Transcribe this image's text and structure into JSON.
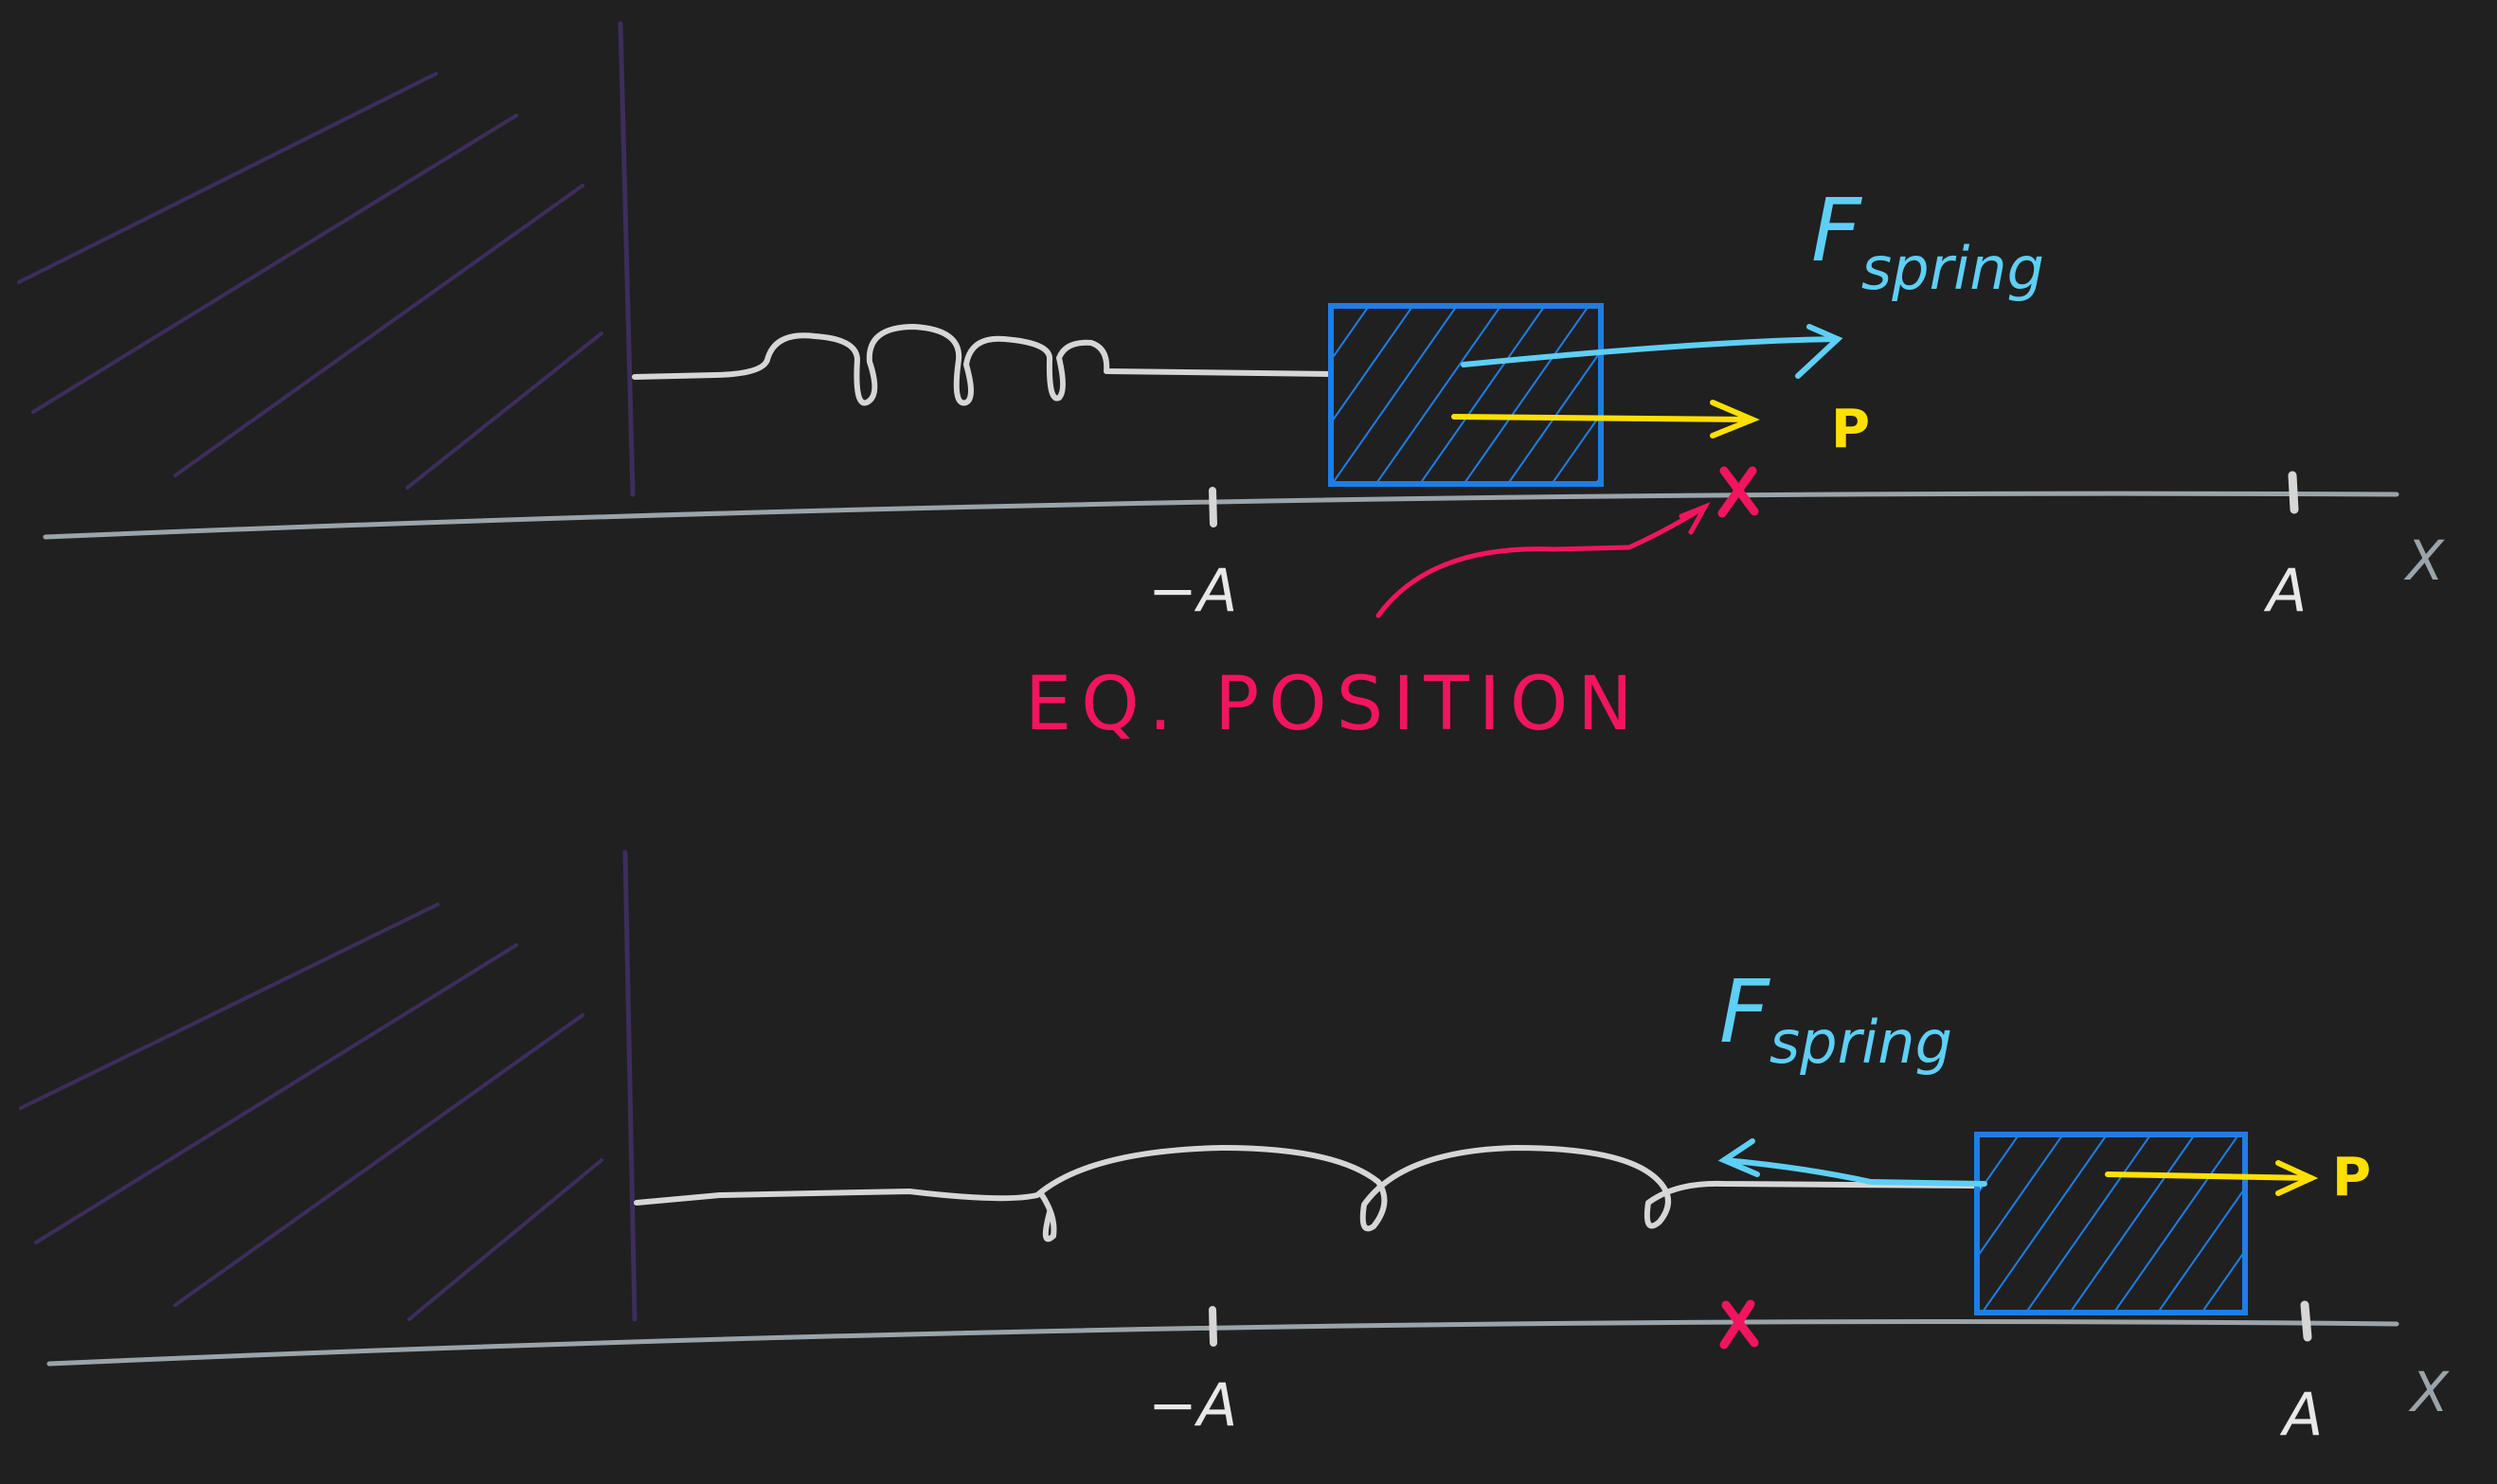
{
  "colors": {
    "background": "#202020",
    "wall": "#3d2d5c",
    "axis": "#9aa4aa",
    "spring": "#d6d6d6",
    "block": "#1e7ee6",
    "spring_force": "#5ecff5",
    "momentum": "#ffe000",
    "equilibrium": "#f2145f"
  },
  "top_panel": {
    "neg_amplitude_label": "−A",
    "amplitude_label": "A",
    "axis_label": "X",
    "force_label_main": "F",
    "force_label_sub": "spring",
    "momentum_label": "P",
    "equilibrium_label": "EQ. POSITION"
  },
  "bottom_panel": {
    "neg_amplitude_label": "−A",
    "amplitude_label": "A",
    "axis_label": "X",
    "force_label_main": "F",
    "force_label_sub": "spring",
    "momentum_label": "P"
  }
}
